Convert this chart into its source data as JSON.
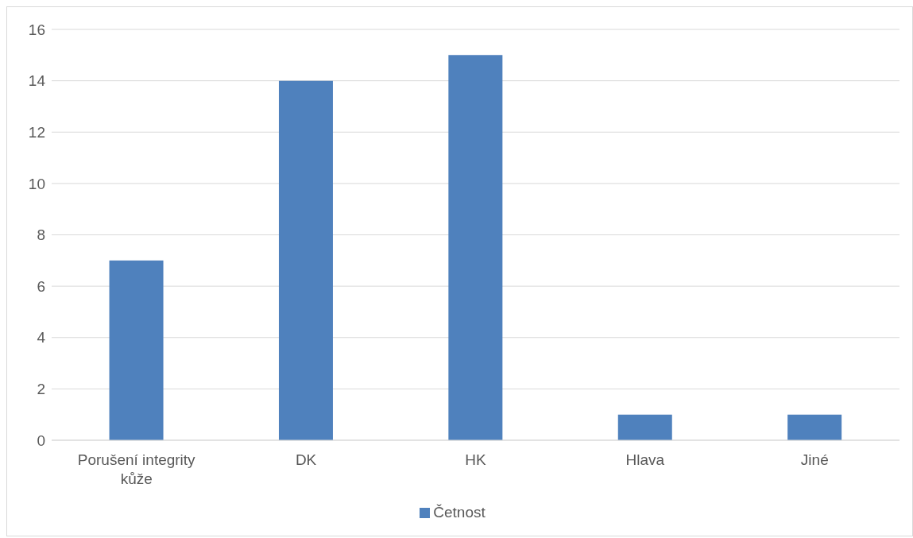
{
  "chart_data": {
    "type": "bar",
    "categories": [
      "Porušení integrity kůže",
      "DK",
      "HK",
      "Hlava",
      "Jiné"
    ],
    "series": [
      {
        "name": "Četnost",
        "color": "#4f81bd",
        "values": [
          7,
          14,
          15,
          1,
          1
        ]
      }
    ],
    "ylim": [
      0,
      16
    ],
    "yticks": [
      0,
      2,
      4,
      6,
      8,
      10,
      12,
      14,
      16
    ],
    "grid": "y",
    "legend": "bottom"
  }
}
